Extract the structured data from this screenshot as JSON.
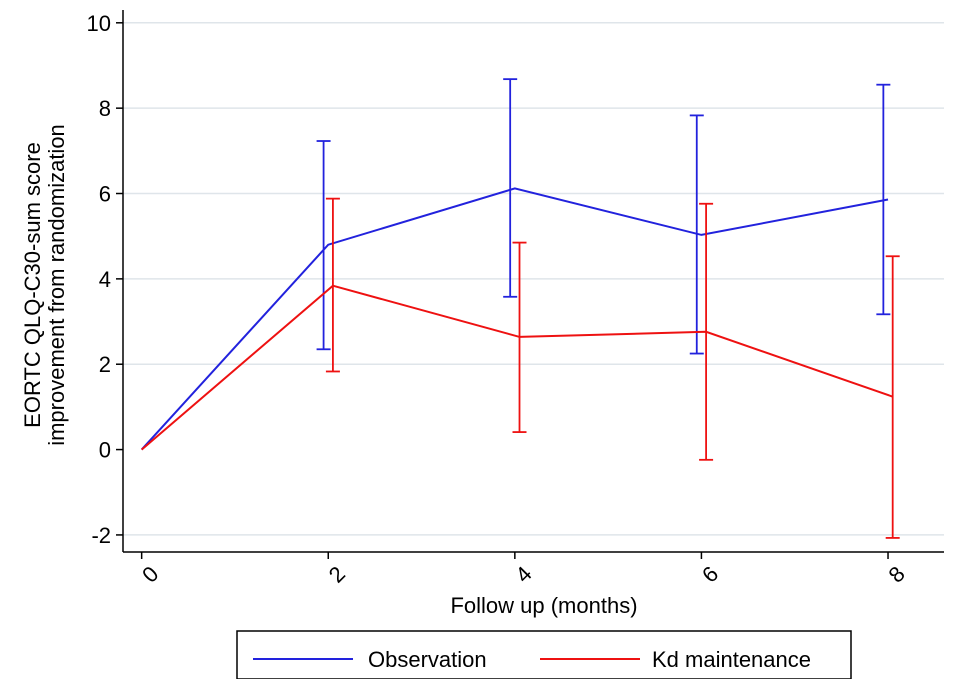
{
  "chart_data": {
    "type": "line",
    "xlabel": "Follow up (months)",
    "ylabel_lines": [
      "EORTC QLQ-C30-sum score",
      "improvement from randomization"
    ],
    "x_ticks": [
      0,
      2,
      4,
      6,
      8
    ],
    "x_tick_labels": [
      "0",
      "2",
      "4",
      "6",
      "8"
    ],
    "y_ticks": [
      -2,
      0,
      2,
      4,
      6,
      8,
      10
    ],
    "y_tick_labels": [
      "-2",
      "0",
      "2",
      "4",
      "6",
      "8",
      "10"
    ],
    "xlim": [
      -0.2,
      8.6
    ],
    "ylim": [
      -2.4,
      10.3
    ],
    "grid": true,
    "legend_position": "bottom",
    "series": [
      {
        "name": "Observation",
        "color": "#2222dd",
        "x": [
          0,
          2,
          4,
          6,
          8
        ],
        "y": [
          0,
          4.8,
          6.12,
          5.03,
          5.86
        ],
        "ci_x": [
          1.95,
          3.95,
          5.95,
          7.95
        ],
        "ci_low": [
          2.35,
          3.58,
          2.25,
          3.17
        ],
        "ci_high": [
          7.23,
          8.68,
          7.83,
          8.55
        ]
      },
      {
        "name": "Kd maintenance",
        "color": "#ee1111",
        "x": [
          0,
          2.05,
          4.05,
          6.05,
          8.05
        ],
        "y": [
          0,
          3.84,
          2.64,
          2.76,
          1.24
        ],
        "ci_x": [
          2.05,
          4.05,
          6.05,
          8.05
        ],
        "ci_low": [
          1.83,
          0.41,
          -0.24,
          -2.07
        ],
        "ci_high": [
          5.88,
          4.85,
          5.76,
          4.53
        ]
      }
    ]
  }
}
